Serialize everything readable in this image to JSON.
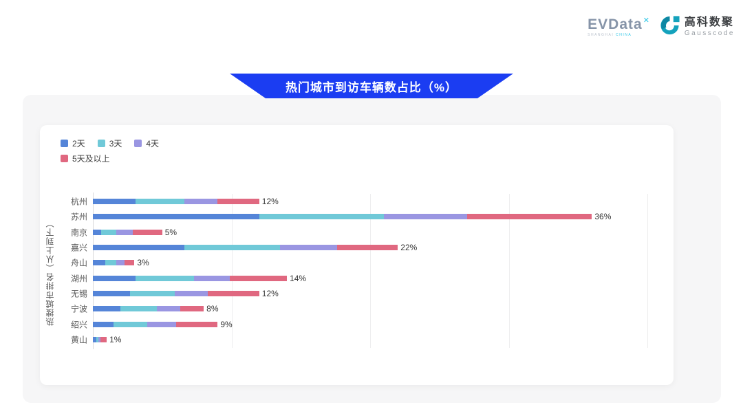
{
  "header": {
    "evdata": {
      "brand": "EVData",
      "sup_mark": "✕",
      "subtext": "SHANGHAI ",
      "subtext_accent": "CHINA"
    },
    "gausscode": {
      "name_cn": "高科数聚",
      "name_en": "Gausscode",
      "icon_color": "#14a2bc"
    }
  },
  "banner": {
    "title": "热门城市到访车辆数占比（%）",
    "color": "#1b3df2"
  },
  "chart_data": {
    "type": "bar",
    "orientation": "horizontal",
    "stacked": true,
    "title": "热门城市到访车辆数占比（%）",
    "xlabel": "",
    "ylabel": "热搜城市排名（从上到下）",
    "xlim": [
      0,
      40
    ],
    "grid": true,
    "grid_interval": 10,
    "legend_position": "top-left",
    "categories": [
      "杭州",
      "苏州",
      "南京",
      "嘉兴",
      "舟山",
      "湖州",
      "无锡",
      "宁波",
      "绍兴",
      "黄山"
    ],
    "series": [
      {
        "name": "2天",
        "color": "#5585d8",
        "values": [
          3.1,
          12.0,
          0.6,
          6.6,
          0.9,
          3.1,
          2.7,
          2.0,
          1.5,
          0.25
        ]
      },
      {
        "name": "3天",
        "color": "#70c9d8",
        "values": [
          3.5,
          9.0,
          1.1,
          6.9,
          0.8,
          4.2,
          3.2,
          2.6,
          2.4,
          0.15
        ]
      },
      {
        "name": "4天",
        "color": "#9a96e2",
        "values": [
          2.4,
          6.0,
          1.2,
          4.1,
          0.6,
          2.6,
          2.4,
          1.7,
          2.1,
          0.15
        ]
      },
      {
        "name": "5天及以上",
        "color": "#e06880",
        "values": [
          3.0,
          9.0,
          2.1,
          4.4,
          0.7,
          4.1,
          3.7,
          1.7,
          3.0,
          0.45
        ]
      }
    ],
    "total_labels": [
      "12%",
      "36%",
      "5%",
      "22%",
      "3%",
      "14%",
      "12%",
      "8%",
      "9%",
      "1%"
    ]
  }
}
